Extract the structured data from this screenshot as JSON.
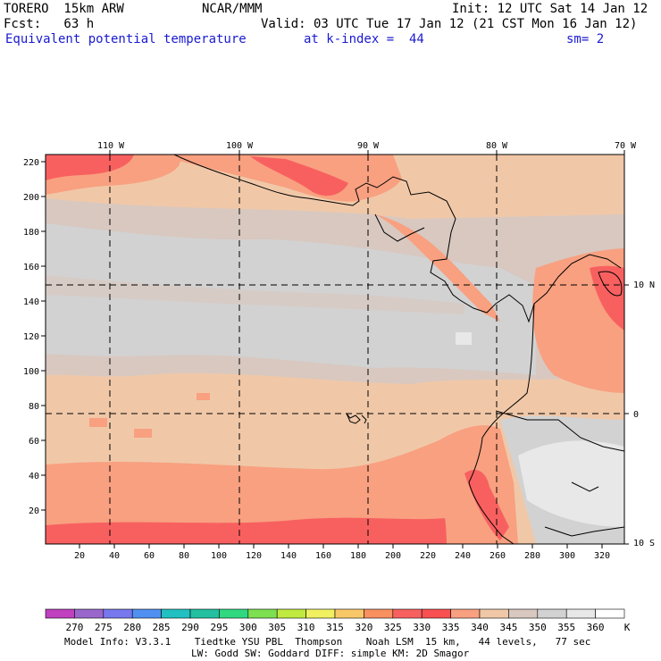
{
  "header": {
    "model": "TORERO  15km ARW",
    "org": "NCAR/MMM",
    "init": "Init: 12 UTC Sat 14 Jan 12",
    "fcst": "Fcst:   63 h",
    "valid": "Valid: 03 UTC Tue 17 Jan 12 (21 CST Mon 16 Jan 12)",
    "field": "Equivalent potential temperature",
    "kindex": "at k-index =  44",
    "sm": "sm= 2"
  },
  "map": {
    "top_lon_labels": [
      "110 W",
      "100 W",
      "90 W",
      "80 W",
      "70 W"
    ],
    "right_lat_labels": [
      "10 N",
      "0",
      "10 S"
    ],
    "y_ticks": [
      "20",
      "40",
      "60",
      "80",
      "100",
      "120",
      "140",
      "160",
      "180",
      "200",
      "220"
    ],
    "x_ticks": [
      "20",
      "40",
      "60",
      "80",
      "100",
      "120",
      "140",
      "160",
      "180",
      "200",
      "220",
      "240",
      "260",
      "280",
      "300",
      "320"
    ]
  },
  "colorbar": {
    "unit": "K",
    "labels": [
      "270",
      "275",
      "280",
      "285",
      "290",
      "295",
      "300",
      "305",
      "310",
      "315",
      "320",
      "325",
      "330",
      "335",
      "340",
      "345",
      "350",
      "355",
      "360"
    ],
    "colors": [
      "#c040c0",
      "#9966cc",
      "#7777ee",
      "#4f90f0",
      "#22c0c0",
      "#22c0a0",
      "#30d880",
      "#7ce050",
      "#c0ea40",
      "#f0f060",
      "#f8c868",
      "#f89060",
      "#f86060",
      "#f85050",
      "#f8a080",
      "#f0c8a8",
      "#d8c8c0",
      "#d2d2d2",
      "#e8e8e8",
      "#ffffff"
    ]
  },
  "footer": {
    "line1": "Model Info: V3.3.1    Tiedtke YSU PBL  Thompson    Noah LSM  15 km,   44 levels,   77 sec",
    "line2": "LW: Godd SW: Goddard DIFF: simple KM: 2D Smagor"
  }
}
